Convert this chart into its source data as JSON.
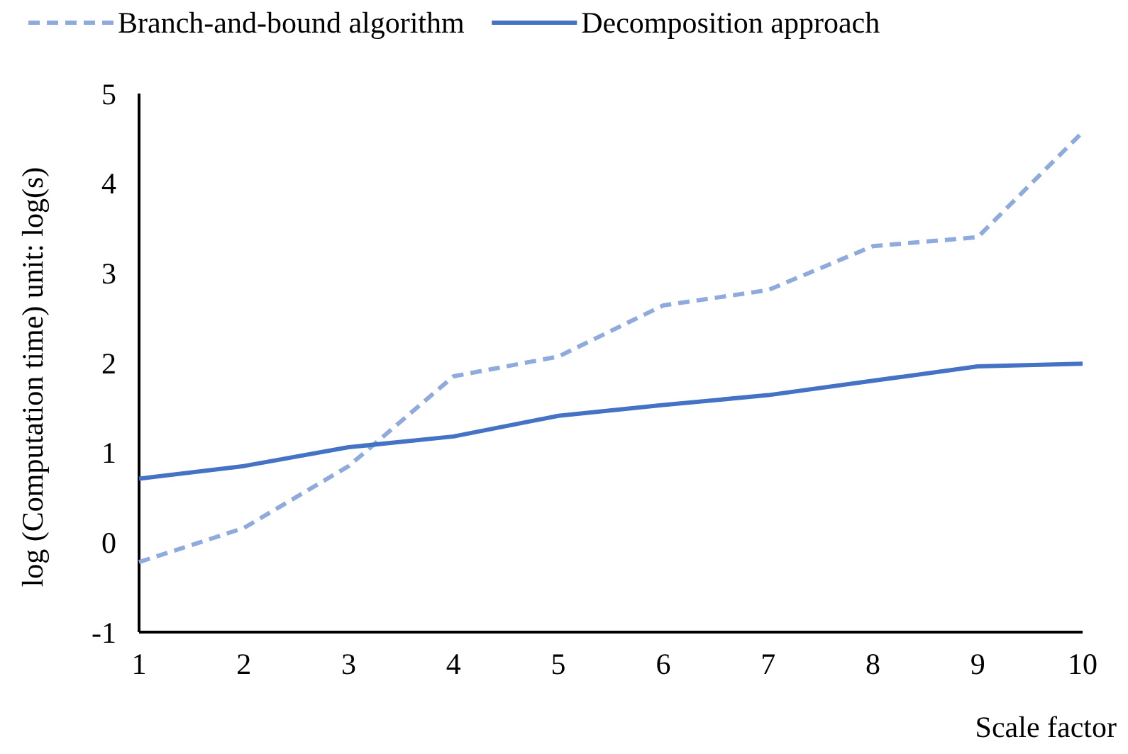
{
  "chart_data": {
    "type": "line",
    "xlabel": "Scale factor",
    "ylabel": "log (Computation time)  unit: log(s)",
    "x": [
      1,
      2,
      3,
      4,
      5,
      6,
      7,
      8,
      9,
      10
    ],
    "xlim": [
      1,
      10
    ],
    "xticks": [
      1,
      2,
      3,
      4,
      5,
      6,
      7,
      8,
      9,
      10
    ],
    "ylim": [
      -1,
      5
    ],
    "yticks": [
      -1,
      0,
      1,
      2,
      3,
      4,
      5
    ],
    "grid": false,
    "legend": "top",
    "marker": "none",
    "series": [
      {
        "name": "Branch-and-bound algorithm",
        "color": "#8faadc",
        "line_style": "dashed",
        "values": [
          -0.22,
          0.16,
          0.85,
          1.85,
          2.07,
          2.64,
          2.81,
          3.3,
          3.4,
          4.57
        ]
      },
      {
        "name": "Decomposition approach",
        "color": "#4472c4",
        "line_style": "solid",
        "values": [
          0.71,
          0.85,
          1.06,
          1.18,
          1.41,
          1.53,
          1.64,
          1.8,
          1.96,
          1.99
        ]
      }
    ]
  }
}
